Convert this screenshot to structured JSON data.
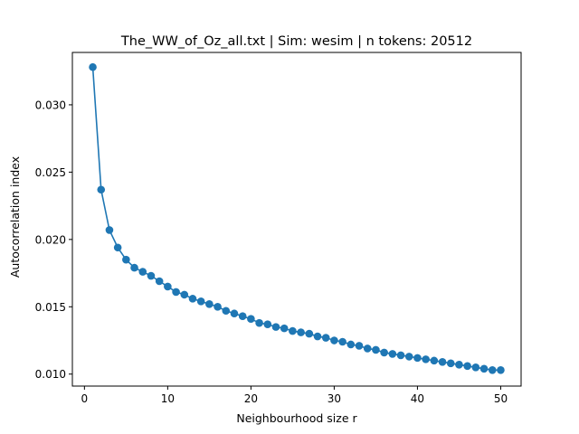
{
  "chart_data": {
    "type": "line",
    "title": "The_WW_of_Oz_all.txt | Sim: wesim | n tokens: 20512",
    "xlabel": "Neighbourhood size r",
    "ylabel": "Autocorrelation index",
    "xlim": [
      -1.45,
      52.45
    ],
    "ylim": [
      0.00911,
      0.03389
    ],
    "xticks": [
      0,
      10,
      20,
      30,
      40,
      50
    ],
    "xtick_labels": [
      "0",
      "10",
      "20",
      "30",
      "40",
      "50"
    ],
    "yticks": [
      0.01,
      0.015,
      0.02,
      0.025,
      0.03
    ],
    "ytick_labels": [
      "0.010",
      "0.015",
      "0.020",
      "0.025",
      "0.030"
    ],
    "grid": false,
    "marker": "circle",
    "series": [
      {
        "color": "#1f77b4",
        "x": [
          1,
          2,
          3,
          4,
          5,
          6,
          7,
          8,
          9,
          10,
          11,
          12,
          13,
          14,
          15,
          16,
          17,
          18,
          19,
          20,
          21,
          22,
          23,
          24,
          25,
          26,
          27,
          28,
          29,
          30,
          31,
          32,
          33,
          34,
          35,
          36,
          37,
          38,
          39,
          40,
          41,
          42,
          43,
          44,
          45,
          46,
          47,
          48,
          49,
          50
        ],
        "y": [
          0.0328,
          0.0237,
          0.0207,
          0.0194,
          0.0185,
          0.0179,
          0.0176,
          0.0173,
          0.0169,
          0.0165,
          0.0161,
          0.0159,
          0.0156,
          0.0154,
          0.0152,
          0.015,
          0.0147,
          0.0145,
          0.0143,
          0.0141,
          0.0138,
          0.0137,
          0.0135,
          0.0134,
          0.0132,
          0.0131,
          0.013,
          0.0128,
          0.0127,
          0.0125,
          0.0124,
          0.0122,
          0.0121,
          0.0119,
          0.0118,
          0.0116,
          0.0115,
          0.0114,
          0.0113,
          0.0112,
          0.0111,
          0.011,
          0.0109,
          0.0108,
          0.0107,
          0.0106,
          0.0105,
          0.0104,
          0.0103,
          0.0103
        ]
      }
    ]
  }
}
